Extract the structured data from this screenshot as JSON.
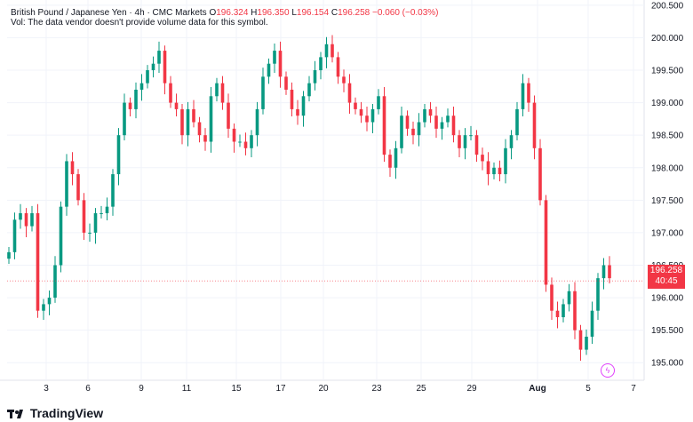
{
  "legend": {
    "symbol": "British Pound / Japanese Yen · 4h · CMC Markets",
    "o_label": "O",
    "o": "196.324",
    "h_label": "H",
    "h": "196.350",
    "l_label": "L",
    "l": "196.154",
    "c_label": "C",
    "c": "196.258",
    "change": "−0.060 (−0.03%)",
    "volume_note": "Vol: The data vendor doesn't provide volume data for this symbol."
  },
  "last_price": {
    "value": "196.258",
    "countdown": "40:45"
  },
  "branding": {
    "logo_text": "TradingView"
  },
  "colors": {
    "up": "#089981",
    "down": "#f23645",
    "grid": "#f0f3fa",
    "text": "#131722"
  },
  "icons": {
    "flag": "lightning-icon"
  },
  "chart_data": {
    "type": "candlestick",
    "title": "",
    "xlabel": "",
    "ylabel": "",
    "ylim": [
      194.73,
      200.58
    ],
    "y_ticks": [
      "195.000",
      "195.500",
      "196.000",
      "196.500",
      "197.000",
      "197.500",
      "198.000",
      "198.500",
      "199.000",
      "199.500",
      "200.000",
      "200.500"
    ],
    "x_ticks": [
      "3",
      "6",
      "9",
      "11",
      "15",
      "17",
      "20",
      "23",
      "25",
      "29",
      "Aug",
      "5",
      "7"
    ],
    "grid": true,
    "last_price": 196.258,
    "series": [
      {
        "close": [
          196.7,
          197.2,
          197.3,
          197.1,
          197.3,
          195.8,
          195.9,
          196.0,
          196.5,
          197.4,
          198.1,
          197.9,
          197.5,
          197.0,
          197.0,
          197.3,
          197.3,
          197.4,
          197.9,
          198.5,
          199.0,
          198.9,
          199.2,
          199.3,
          199.5,
          199.6,
          199.8,
          199.3,
          199.0,
          198.9,
          198.5,
          198.9,
          198.7,
          198.5,
          198.4,
          199.1,
          199.3,
          199.0,
          198.6,
          198.4,
          198.4,
          198.3,
          198.5,
          198.9,
          199.4,
          199.6,
          199.8,
          199.4,
          199.2,
          198.9,
          198.8,
          199.1,
          199.3,
          199.5,
          199.7,
          199.9,
          199.7,
          199.4,
          199.3,
          199.0,
          198.9,
          198.8,
          198.7,
          198.9,
          199.1,
          198.2,
          198.0,
          198.3,
          198.8,
          198.6,
          198.5,
          198.7,
          198.9,
          198.8,
          198.6,
          198.7,
          198.8,
          198.5,
          198.3,
          198.5,
          198.5,
          198.2,
          198.1,
          197.9,
          198.0,
          197.9,
          198.3,
          198.5,
          198.9,
          199.3,
          199.0,
          198.3,
          197.5,
          196.2,
          195.8,
          195.7,
          195.9,
          196.1,
          195.5,
          195.2,
          195.4,
          195.8,
          196.3,
          196.5,
          196.3
        ]
      }
    ]
  }
}
